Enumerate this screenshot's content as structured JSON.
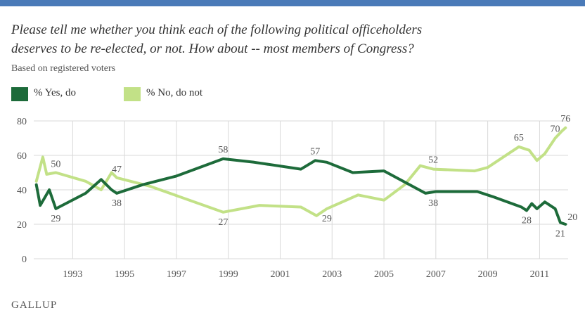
{
  "title_line1": "Please tell me whether you think each of the following political officeholders",
  "title_line2": "deserves to be re-elected, or not. How about -- most members of Congress?",
  "subtitle": "Based on registered voters",
  "footer": "GALLUP",
  "colors": {
    "yes": "#1d6b3a",
    "no": "#c2e187",
    "grid": "#d9d9d9",
    "axis_text": "#555555",
    "top_bar": "#4a7ab8"
  },
  "chart_data": {
    "type": "line",
    "y_ticks": [
      0,
      20,
      40,
      60,
      80
    ],
    "ylim": [
      0,
      80
    ],
    "xlim": [
      1991.5,
      2012.1
    ],
    "x_ticks": [
      1993,
      1995,
      1997,
      1999,
      2001,
      2003,
      2005,
      2007,
      2009,
      2011
    ],
    "x_tick_labels": [
      "1993",
      "1995",
      "1997",
      "1999",
      "2001",
      "2003",
      "2005",
      "2007",
      "2009",
      "2011"
    ],
    "grid": true,
    "legend_position": "top-left",
    "series": [
      {
        "name": "% Yes, do",
        "color": "#1d6b3a",
        "points": [
          [
            1991.6,
            43
          ],
          [
            1991.75,
            31
          ],
          [
            1992.1,
            40
          ],
          [
            1992.35,
            29
          ],
          [
            1993.5,
            38
          ],
          [
            1994.1,
            46
          ],
          [
            1994.5,
            40
          ],
          [
            1994.7,
            38
          ],
          [
            1995.7,
            43
          ],
          [
            1997.0,
            48
          ],
          [
            1998.8,
            58
          ],
          [
            2000.0,
            56
          ],
          [
            2001.8,
            52
          ],
          [
            2002.35,
            57
          ],
          [
            2002.8,
            56
          ],
          [
            2003.8,
            50
          ],
          [
            2005.0,
            51
          ],
          [
            2006.6,
            38
          ],
          [
            2007.0,
            39
          ],
          [
            2008.6,
            39
          ],
          [
            2009.2,
            36
          ],
          [
            2010.3,
            30
          ],
          [
            2010.5,
            28
          ],
          [
            2010.7,
            32
          ],
          [
            2010.9,
            29
          ],
          [
            2011.2,
            33
          ],
          [
            2011.6,
            29
          ],
          [
            2011.8,
            21
          ],
          [
            2012.0,
            20
          ]
        ]
      },
      {
        "name": "% No, do not",
        "color": "#c2e187",
        "points": [
          [
            1991.6,
            45
          ],
          [
            1991.85,
            59
          ],
          [
            1992.0,
            49
          ],
          [
            1992.35,
            50
          ],
          [
            1993.5,
            45
          ],
          [
            1994.1,
            40
          ],
          [
            1994.5,
            50
          ],
          [
            1994.7,
            47
          ],
          [
            1996.0,
            42
          ],
          [
            1998.8,
            27
          ],
          [
            2000.2,
            31
          ],
          [
            2001.8,
            30
          ],
          [
            2002.4,
            25
          ],
          [
            2002.8,
            29
          ],
          [
            2004.0,
            37
          ],
          [
            2005.0,
            34
          ],
          [
            2005.8,
            43
          ],
          [
            2006.4,
            54
          ],
          [
            2006.9,
            52
          ],
          [
            2008.5,
            51
          ],
          [
            2009.0,
            53
          ],
          [
            2009.8,
            61
          ],
          [
            2010.2,
            65
          ],
          [
            2010.6,
            63
          ],
          [
            2010.9,
            57
          ],
          [
            2011.2,
            61
          ],
          [
            2011.6,
            70
          ],
          [
            2011.85,
            74
          ],
          [
            2012.0,
            76
          ]
        ]
      }
    ],
    "annotations": [
      {
        "x": 1992.35,
        "y": 50,
        "text": "50",
        "dy": -8
      },
      {
        "x": 1992.35,
        "y": 29,
        "text": "29",
        "dy": 18
      },
      {
        "x": 1994.7,
        "y": 47,
        "text": "47",
        "dy": -8
      },
      {
        "x": 1994.7,
        "y": 38,
        "text": "38",
        "dy": 18
      },
      {
        "x": 1998.8,
        "y": 58,
        "text": "58",
        "dy": -9
      },
      {
        "x": 1998.8,
        "y": 27,
        "text": "27",
        "dy": 18
      },
      {
        "x": 2002.35,
        "y": 57,
        "text": "57",
        "dy": -9
      },
      {
        "x": 2002.8,
        "y": 29,
        "text": "29",
        "dy": 18
      },
      {
        "x": 2006.9,
        "y": 52,
        "text": "52",
        "dy": -9
      },
      {
        "x": 2006.9,
        "y": 38,
        "text": "38",
        "dy": 18
      },
      {
        "x": 2010.2,
        "y": 65,
        "text": "65",
        "dy": -9
      },
      {
        "x": 2010.5,
        "y": 28,
        "text": "28",
        "dy": 18
      },
      {
        "x": 2011.6,
        "y": 70,
        "text": "70",
        "dy": -9
      },
      {
        "x": 2012.0,
        "y": 76,
        "text": "76",
        "dy": -9
      },
      {
        "x": 2012.0,
        "y": 20,
        "text": "20",
        "dy": -6,
        "dx": 10
      },
      {
        "x": 2011.8,
        "y": 21,
        "text": "21",
        "dy": 20
      }
    ]
  }
}
